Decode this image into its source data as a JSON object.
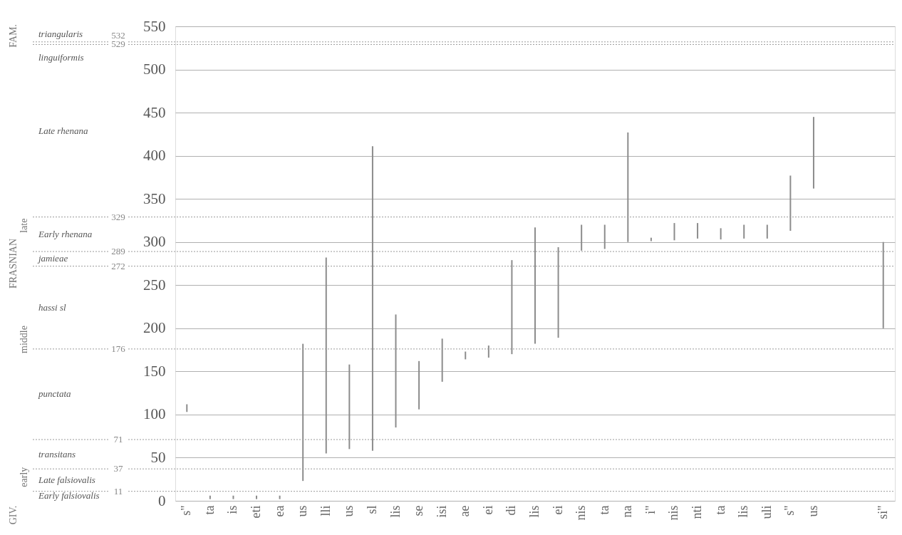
{
  "chart_data": {
    "type": "bar",
    "categories": [
      "s\"",
      "ta",
      "is",
      "eti",
      "ea",
      "us",
      "lli",
      "us",
      "sl",
      "lis",
      "se",
      "isi",
      "ae",
      "ei",
      "di",
      "lis",
      "ei",
      "nis",
      "ta",
      "na",
      "i\"",
      "nis",
      "nti",
      "ta",
      "lis",
      "uli",
      "s\"",
      "us",
      null,
      null,
      "si\""
    ],
    "base": [
      103,
      2,
      2,
      2,
      2,
      23,
      55,
      60,
      58,
      85,
      106,
      138,
      164,
      166,
      170,
      182,
      189,
      290,
      292,
      300,
      301,
      302,
      304,
      303,
      304,
      304,
      313,
      362,
      null,
      null,
      200
    ],
    "values": [
      9,
      4,
      4,
      4,
      4,
      159,
      227,
      98,
      353,
      131,
      56,
      50,
      9,
      14,
      109,
      135,
      105,
      30,
      28,
      127,
      4,
      20,
      18,
      13,
      16,
      16,
      64,
      83,
      null,
      null,
      100
    ],
    "color": "#8c8c8c",
    "ylim": [
      0,
      550
    ],
    "yticks": [
      0,
      50,
      100,
      150,
      200,
      250,
      300,
      350,
      400,
      450,
      500,
      550
    ],
    "grid": "y",
    "ref_lines": [
      {
        "axis": "y",
        "value": 11,
        "label": "11",
        "line_style": "dotted",
        "color": "#9a9a9a"
      },
      {
        "axis": "y",
        "value": 37,
        "label": "37",
        "line_style": "dotted",
        "color": "#9a9a9a"
      },
      {
        "axis": "y",
        "value": 71,
        "label": "71",
        "line_style": "dotted",
        "color": "#9a9a9a"
      },
      {
        "axis": "y",
        "value": 176,
        "label": "176",
        "line_style": "dotted",
        "color": "#9a9a9a"
      },
      {
        "axis": "y",
        "value": 272,
        "label": "272",
        "line_style": "dotted",
        "color": "#9a9a9a"
      },
      {
        "axis": "y",
        "value": 289,
        "label": "289",
        "line_style": "dotted",
        "color": "#9a9a9a"
      },
      {
        "axis": "y",
        "value": 329,
        "label": "329",
        "line_style": "dotted",
        "color": "#9a9a9a"
      },
      {
        "axis": "y",
        "value": 529,
        "label": "529",
        "line_style": "dotted",
        "color": "#9a9a9a"
      },
      {
        "axis": "y",
        "value": 532,
        "label": "532",
        "line_style": "dotted",
        "color": "#9a9a9a"
      }
    ],
    "annotations": [
      "Early falsiovalis",
      "Late falsiovalis",
      "transitans",
      "punctata",
      "hassi sl",
      "jamieae",
      "Early rhenana",
      "Late rhenana",
      "linguiformis",
      "triangularis",
      "GIV.",
      "FRASNIAN",
      "FAM.",
      "early",
      "middle",
      "late"
    ]
  }
}
